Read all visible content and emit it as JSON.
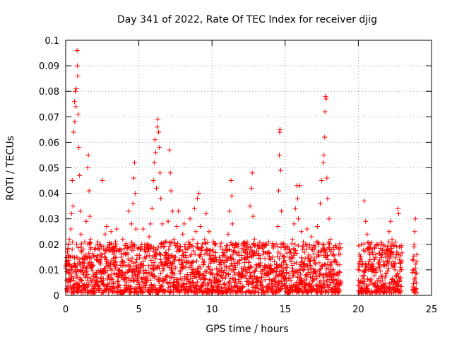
{
  "chart_data": {
    "type": "scatter",
    "title": "Day 341 of 2022, Rate Of TEC Index for receiver djig",
    "xlabel": "GPS time / hours",
    "ylabel": "ROTI / TECUs",
    "xlim": [
      0,
      25
    ],
    "ylim": [
      0,
      0.1
    ],
    "grid": true,
    "marker": "+",
    "marker_color": "#ff0000",
    "x_ticks": [
      {
        "value": 0,
        "label": "0"
      },
      {
        "value": 5,
        "label": "5"
      },
      {
        "value": 10,
        "label": "10"
      },
      {
        "value": 15,
        "label": "15"
      },
      {
        "value": 20,
        "label": "20"
      },
      {
        "value": 25,
        "label": "25"
      }
    ],
    "y_ticks": [
      {
        "value": 0,
        "label": "0"
      },
      {
        "value": 0.01,
        "label": "0.01"
      },
      {
        "value": 0.02,
        "label": "0.02"
      },
      {
        "value": 0.03,
        "label": "0.03"
      },
      {
        "value": 0.04,
        "label": "0.04"
      },
      {
        "value": 0.05,
        "label": "0.05"
      },
      {
        "value": 0.06,
        "label": "0.06"
      },
      {
        "value": 0.07,
        "label": "0.07"
      },
      {
        "value": 0.08,
        "label": "0.08"
      },
      {
        "value": 0.09,
        "label": "0.09"
      },
      {
        "value": 0.1,
        "label": "0.1"
      }
    ],
    "data_gaps_hours": [
      [
        18.8,
        20.0
      ],
      [
        23.0,
        23.7
      ]
    ],
    "series": [
      {
        "name": "ROTI",
        "points": [
          [
            0.05,
            0.006
          ],
          [
            0.1,
            0.012
          ],
          [
            0.15,
            0.018
          ],
          [
            0.2,
            0.009
          ],
          [
            0.25,
            0.022
          ],
          [
            0.3,
            0.015
          ],
          [
            0.35,
            0.026
          ],
          [
            0.4,
            0.032
          ],
          [
            0.45,
            0.045
          ],
          [
            0.5,
            0.035
          ],
          [
            0.55,
            0.064
          ],
          [
            0.6,
            0.076
          ],
          [
            0.62,
            0.068
          ],
          [
            0.65,
            0.08
          ],
          [
            0.7,
            0.074
          ],
          [
            0.72,
            0.081
          ],
          [
            0.78,
            0.096
          ],
          [
            0.8,
            0.09
          ],
          [
            0.82,
            0.086
          ],
          [
            0.85,
            0.071
          ],
          [
            0.9,
            0.058
          ],
          [
            0.95,
            0.047
          ],
          [
            1.0,
            0.033
          ],
          [
            1.05,
            0.024
          ],
          [
            1.1,
            0.017
          ],
          [
            1.2,
            0.011
          ],
          [
            1.3,
            0.021
          ],
          [
            1.4,
            0.029
          ],
          [
            1.5,
            0.05
          ],
          [
            1.55,
            0.055
          ],
          [
            1.6,
            0.041
          ],
          [
            1.65,
            0.031
          ],
          [
            1.7,
            0.022
          ],
          [
            1.8,
            0.012
          ],
          [
            1.9,
            0.008
          ],
          [
            2.0,
            0.018
          ],
          [
            2.1,
            0.014
          ],
          [
            2.2,
            0.021
          ],
          [
            2.3,
            0.009
          ],
          [
            2.4,
            0.016
          ],
          [
            2.5,
            0.045
          ],
          [
            2.6,
            0.019
          ],
          [
            2.7,
            0.024
          ],
          [
            2.8,
            0.027
          ],
          [
            2.9,
            0.013
          ],
          [
            3.0,
            0.02
          ],
          [
            3.1,
            0.025
          ],
          [
            3.2,
            0.017
          ],
          [
            3.3,
            0.012
          ],
          [
            3.4,
            0.021
          ],
          [
            3.5,
            0.026
          ],
          [
            3.6,
            0.01
          ],
          [
            3.7,
            0.018
          ],
          [
            3.8,
            0.015
          ],
          [
            3.9,
            0.022
          ],
          [
            4.0,
            0.013
          ],
          [
            4.1,
            0.016
          ],
          [
            4.2,
            0.009
          ],
          [
            4.3,
            0.033
          ],
          [
            4.4,
            0.019
          ],
          [
            4.5,
            0.028
          ],
          [
            4.6,
            0.036
          ],
          [
            4.65,
            0.046
          ],
          [
            4.7,
            0.052
          ],
          [
            4.75,
            0.04
          ],
          [
            4.8,
            0.026
          ],
          [
            4.85,
            0.014
          ],
          [
            4.9,
            0.006
          ],
          [
            5.1,
            0.012
          ],
          [
            5.2,
            0.02
          ],
          [
            5.3,
            0.026
          ],
          [
            5.4,
            0.015
          ],
          [
            5.5,
            0.009
          ],
          [
            5.6,
            0.017
          ],
          [
            5.7,
            0.023
          ],
          [
            5.8,
            0.028
          ],
          [
            5.9,
            0.034
          ],
          [
            6.0,
            0.045
          ],
          [
            6.05,
            0.052
          ],
          [
            6.1,
            0.061
          ],
          [
            6.15,
            0.056
          ],
          [
            6.2,
            0.042
          ],
          [
            6.25,
            0.066
          ],
          [
            6.3,
            0.069
          ],
          [
            6.35,
            0.064
          ],
          [
            6.4,
            0.058
          ],
          [
            6.45,
            0.048
          ],
          [
            6.5,
            0.038
          ],
          [
            6.6,
            0.028
          ],
          [
            6.7,
            0.019
          ],
          [
            6.8,
            0.012
          ],
          [
            6.9,
            0.021
          ],
          [
            7.0,
            0.029
          ],
          [
            7.1,
            0.057
          ],
          [
            7.15,
            0.048
          ],
          [
            7.2,
            0.041
          ],
          [
            7.3,
            0.033
          ],
          [
            7.4,
            0.022
          ],
          [
            7.5,
            0.015
          ],
          [
            7.6,
            0.027
          ],
          [
            7.7,
            0.033
          ],
          [
            7.8,
            0.019
          ],
          [
            7.9,
            0.012
          ],
          [
            8.0,
            0.024
          ],
          [
            8.1,
            0.028
          ],
          [
            8.2,
            0.018
          ],
          [
            8.3,
            0.013
          ],
          [
            8.4,
            0.021
          ],
          [
            8.5,
            0.03
          ],
          [
            8.6,
            0.016
          ],
          [
            8.7,
            0.022
          ],
          [
            8.8,
            0.034
          ],
          [
            8.9,
            0.025
          ],
          [
            9.0,
            0.038
          ],
          [
            9.1,
            0.04
          ],
          [
            9.2,
            0.027
          ],
          [
            9.3,
            0.019
          ],
          [
            9.4,
            0.012
          ],
          [
            9.5,
            0.022
          ],
          [
            9.6,
            0.032
          ],
          [
            9.7,
            0.018
          ],
          [
            9.8,
            0.025
          ],
          [
            9.9,
            0.014
          ],
          [
            10.0,
            0.01
          ],
          [
            10.1,
            0.021
          ],
          [
            10.2,
            0.015
          ],
          [
            10.3,
            0.006
          ],
          [
            10.5,
            0.012
          ],
          [
            10.7,
            0.018
          ],
          [
            10.9,
            0.015
          ],
          [
            11.1,
            0.024
          ],
          [
            11.2,
            0.033
          ],
          [
            11.3,
            0.045
          ],
          [
            11.35,
            0.039
          ],
          [
            11.4,
            0.028
          ],
          [
            11.5,
            0.017
          ],
          [
            11.6,
            0.011
          ],
          [
            11.8,
            0.02
          ],
          [
            12.0,
            0.014
          ],
          [
            12.2,
            0.018
          ],
          [
            12.4,
            0.021
          ],
          [
            12.5,
            0.013
          ],
          [
            12.6,
            0.035
          ],
          [
            12.7,
            0.042
          ],
          [
            12.75,
            0.048
          ],
          [
            12.8,
            0.031
          ],
          [
            12.9,
            0.022
          ],
          [
            13.0,
            0.016
          ],
          [
            13.2,
            0.012
          ],
          [
            13.4,
            0.019
          ],
          [
            13.6,
            0.011
          ],
          [
            13.8,
            0.017
          ],
          [
            14.0,
            0.014
          ],
          [
            14.1,
            0.009
          ],
          [
            14.4,
            0.012
          ],
          [
            14.5,
            0.027
          ],
          [
            14.55,
            0.041
          ],
          [
            14.6,
            0.055
          ],
          [
            14.62,
            0.064
          ],
          [
            14.65,
            0.065
          ],
          [
            14.7,
            0.049
          ],
          [
            14.75,
            0.033
          ],
          [
            14.8,
            0.02
          ],
          [
            14.9,
            0.013
          ],
          [
            15.0,
            0.018
          ],
          [
            15.1,
            0.009
          ],
          [
            15.3,
            0.015
          ],
          [
            15.5,
            0.022
          ],
          [
            15.6,
            0.028
          ],
          [
            15.7,
            0.034
          ],
          [
            15.8,
            0.043
          ],
          [
            15.85,
            0.038
          ],
          [
            15.9,
            0.03
          ],
          [
            16.0,
            0.043
          ],
          [
            16.1,
            0.025
          ],
          [
            16.2,
            0.018
          ],
          [
            16.3,
            0.012
          ],
          [
            16.4,
            0.02
          ],
          [
            16.5,
            0.026
          ],
          [
            16.6,
            0.015
          ],
          [
            16.8,
            0.023
          ],
          [
            17.0,
            0.018
          ],
          [
            17.2,
            0.027
          ],
          [
            17.4,
            0.036
          ],
          [
            17.5,
            0.045
          ],
          [
            17.6,
            0.052
          ],
          [
            17.65,
            0.055
          ],
          [
            17.7,
            0.062
          ],
          [
            17.72,
            0.072
          ],
          [
            17.75,
            0.078
          ],
          [
            17.8,
            0.077
          ],
          [
            17.85,
            0.046
          ],
          [
            17.9,
            0.038
          ],
          [
            18.0,
            0.03
          ],
          [
            18.1,
            0.022
          ],
          [
            18.2,
            0.016
          ],
          [
            18.3,
            0.01
          ],
          [
            18.5,
            0.013
          ],
          [
            18.7,
            0.009
          ],
          [
            20.0,
            0.006
          ],
          [
            20.1,
            0.016
          ],
          [
            20.2,
            0.02
          ],
          [
            20.3,
            0.012
          ],
          [
            20.4,
            0.037
          ],
          [
            20.5,
            0.029
          ],
          [
            20.6,
            0.024
          ],
          [
            20.7,
            0.018
          ],
          [
            20.8,
            0.014
          ],
          [
            20.9,
            0.011
          ],
          [
            21.0,
            0.016
          ],
          [
            21.2,
            0.009
          ],
          [
            21.4,
            0.013
          ],
          [
            21.6,
            0.02
          ],
          [
            21.8,
            0.012
          ],
          [
            22.0,
            0.018
          ],
          [
            22.1,
            0.025
          ],
          [
            22.2,
            0.029
          ],
          [
            22.3,
            0.022
          ],
          [
            22.4,
            0.016
          ],
          [
            22.5,
            0.01
          ],
          [
            22.6,
            0.016
          ],
          [
            22.7,
            0.034
          ],
          [
            22.75,
            0.032
          ],
          [
            22.8,
            0.019
          ],
          [
            22.9,
            0.011
          ],
          [
            23.7,
            0.009
          ],
          [
            23.75,
            0.014
          ],
          [
            23.8,
            0.019
          ],
          [
            23.85,
            0.025
          ],
          [
            23.9,
            0.03
          ]
        ]
      }
    ]
  }
}
